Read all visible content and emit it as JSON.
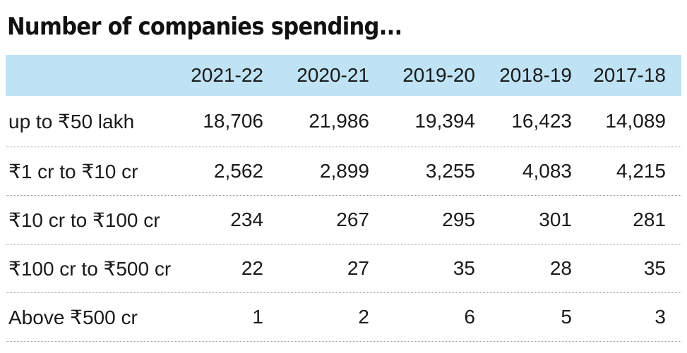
{
  "title": "Number of companies spending...",
  "chart_data": {
    "type": "table",
    "title": "Number of companies spending...",
    "columns": [
      "2021-22",
      "2020-21",
      "2019-20",
      "2018-19",
      "2017-18"
    ],
    "rows": [
      {
        "label": "up to ₹50 lakh",
        "values": [
          "18,706",
          "21,986",
          "19,394",
          "16,423",
          "14,089"
        ]
      },
      {
        "label": "₹1 cr to ₹10 cr",
        "values": [
          "2,562",
          "2,899",
          "3,255",
          "4,083",
          "4,215"
        ]
      },
      {
        "label": "₹10 cr to ₹100 cr",
        "values": [
          "234",
          "267",
          "295",
          "301",
          "281"
        ]
      },
      {
        "label": "₹100 cr to ₹500 cr",
        "values": [
          "22",
          "27",
          "35",
          "28",
          "35"
        ]
      },
      {
        "label": "Above ₹500 cr",
        "values": [
          "1",
          "2",
          "6",
          "5",
          "3"
        ]
      }
    ]
  },
  "colors": {
    "header_background": "#bfe3f5",
    "text": "#1a1a1a",
    "row_divider": "#9a9a9a"
  }
}
